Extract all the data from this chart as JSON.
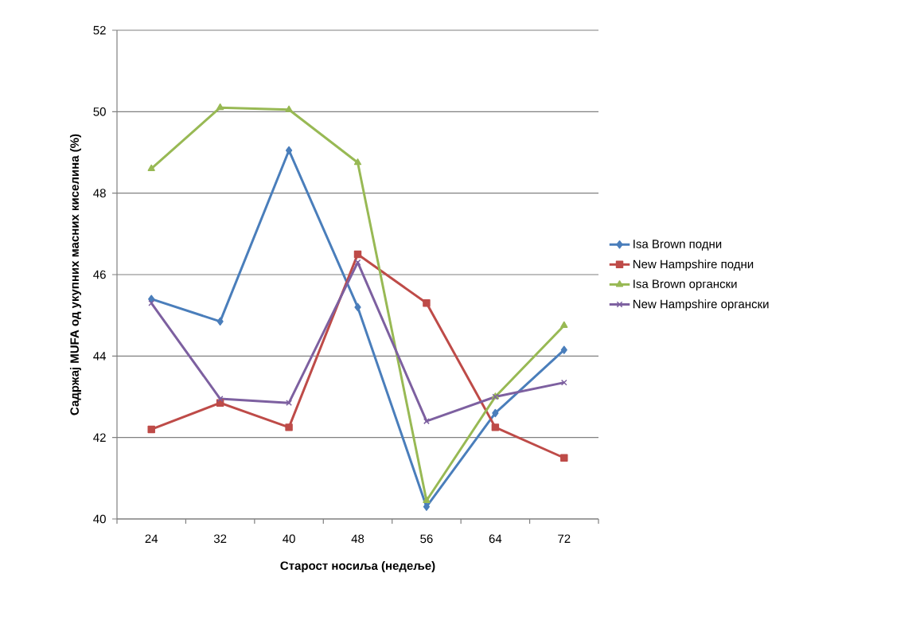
{
  "chart_data": {
    "type": "line",
    "xlabel": "Старост носиља (недеље)",
    "ylabel": "Садржај MUFA од укупних масних киселина (%)",
    "categories": [
      "24",
      "32",
      "40",
      "48",
      "56",
      "64",
      "72"
    ],
    "ylim": [
      40,
      52
    ],
    "yticks": [
      40,
      42,
      44,
      46,
      48,
      50,
      52
    ],
    "grid": "y",
    "legend": "right",
    "series": [
      {
        "name": "Isa Brown подни",
        "color": "#4a7ebb",
        "marker": "diamond",
        "values": [
          45.4,
          44.85,
          49.05,
          45.2,
          40.3,
          42.6,
          44.15
        ]
      },
      {
        "name": "New Hampshire подни",
        "color": "#be4b48",
        "marker": "square",
        "values": [
          42.2,
          42.85,
          42.25,
          46.5,
          45.3,
          42.25,
          41.5
        ]
      },
      {
        "name": "Isa Brown органски",
        "color": "#98b954",
        "marker": "triangle",
        "values": [
          48.6,
          50.1,
          50.05,
          48.75,
          40.45,
          43.0,
          44.75
        ]
      },
      {
        "name": "New Hampshire органски",
        "color": "#7d60a0",
        "marker": "cross",
        "values": [
          45.3,
          42.95,
          42.85,
          46.3,
          42.4,
          43.0,
          43.35
        ]
      }
    ]
  }
}
